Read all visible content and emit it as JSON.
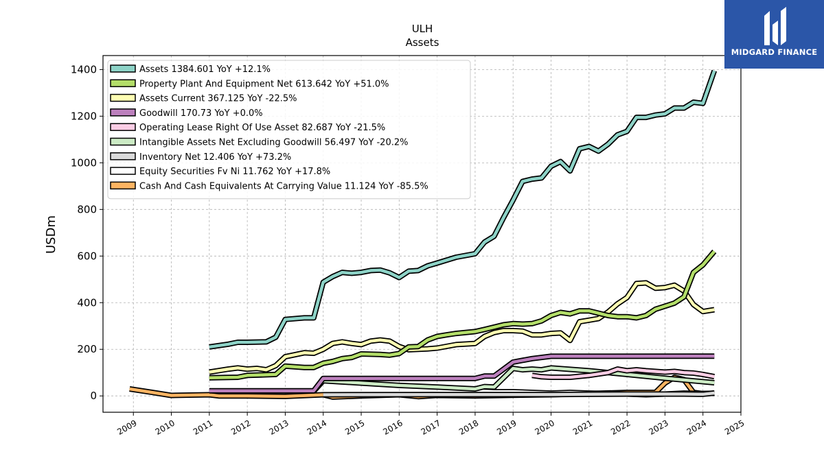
{
  "chart_data": {
    "type": "line",
    "title": "ULH",
    "subtitle": "Assets",
    "ylabel": "USDm",
    "xlabel": "",
    "xlim": [
      2008.2,
      2025.0
    ],
    "ylim": [
      -70,
      1460
    ],
    "x_ticks": [
      "2009",
      "2010",
      "2011",
      "2012",
      "2013",
      "2014",
      "2015",
      "2016",
      "2017",
      "2018",
      "2019",
      "2020",
      "2021",
      "2022",
      "2023",
      "2024",
      "2025"
    ],
    "y_ticks": [
      0,
      200,
      400,
      600,
      800,
      1000,
      1200,
      1400
    ],
    "grid": true,
    "legend_position": "top-left",
    "series": [
      {
        "name": "Assets",
        "label": "Assets  1384.601 YoY +12.1%",
        "color": "#8dd3c7",
        "points": [
          [
            2011.0,
            210
          ],
          [
            2011.5,
            222
          ],
          [
            2011.75,
            230
          ],
          [
            2012.0,
            230
          ],
          [
            2012.5,
            232
          ],
          [
            2012.75,
            252
          ],
          [
            2013.0,
            328
          ],
          [
            2013.5,
            335
          ],
          [
            2013.75,
            335
          ],
          [
            2014.0,
            488
          ],
          [
            2014.25,
            512
          ],
          [
            2014.5,
            530
          ],
          [
            2014.75,
            526
          ],
          [
            2015.0,
            530
          ],
          [
            2015.25,
            538
          ],
          [
            2015.5,
            540
          ],
          [
            2015.75,
            528
          ],
          [
            2016.0,
            508
          ],
          [
            2016.25,
            535
          ],
          [
            2016.5,
            538
          ],
          [
            2016.75,
            558
          ],
          [
            2017.0,
            570
          ],
          [
            2017.5,
            595
          ],
          [
            2018.0,
            610
          ],
          [
            2018.25,
            660
          ],
          [
            2018.5,
            685
          ],
          [
            2018.75,
            765
          ],
          [
            2019.0,
            840
          ],
          [
            2019.25,
            920
          ],
          [
            2019.5,
            930
          ],
          [
            2019.75,
            935
          ],
          [
            2020.0,
            985
          ],
          [
            2020.25,
            1005
          ],
          [
            2020.5,
            965
          ],
          [
            2020.75,
            1060
          ],
          [
            2021.0,
            1070
          ],
          [
            2021.25,
            1050
          ],
          [
            2021.5,
            1080
          ],
          [
            2021.75,
            1120
          ],
          [
            2022.0,
            1135
          ],
          [
            2022.25,
            1195
          ],
          [
            2022.5,
            1195
          ],
          [
            2022.75,
            1205
          ],
          [
            2023.0,
            1210
          ],
          [
            2023.25,
            1235
          ],
          [
            2023.5,
            1235
          ],
          [
            2023.75,
            1260
          ],
          [
            2024.0,
            1255
          ],
          [
            2024.3,
            1395
          ]
        ]
      },
      {
        "name": "Property Plant And Equipment Net",
        "label": "Property Plant And Equipment Net  613.642 YoY +51.0%",
        "color": "#b3de69",
        "points": [
          [
            2011.0,
            78
          ],
          [
            2011.75,
            80
          ],
          [
            2012.0,
            88
          ],
          [
            2012.75,
            92
          ],
          [
            2013.0,
            128
          ],
          [
            2013.5,
            122
          ],
          [
            2013.75,
            122
          ],
          [
            2014.0,
            140
          ],
          [
            2014.25,
            148
          ],
          [
            2014.5,
            160
          ],
          [
            2014.75,
            165
          ],
          [
            2015.0,
            180
          ],
          [
            2015.5,
            178
          ],
          [
            2015.75,
            175
          ],
          [
            2016.0,
            182
          ],
          [
            2016.25,
            210
          ],
          [
            2016.5,
            212
          ],
          [
            2016.75,
            240
          ],
          [
            2017.0,
            255
          ],
          [
            2017.25,
            262
          ],
          [
            2017.5,
            268
          ],
          [
            2018.0,
            276
          ],
          [
            2018.25,
            285
          ],
          [
            2018.5,
            295
          ],
          [
            2018.75,
            305
          ],
          [
            2019.0,
            310
          ],
          [
            2019.25,
            308
          ],
          [
            2019.5,
            310
          ],
          [
            2019.75,
            322
          ],
          [
            2020.0,
            345
          ],
          [
            2020.25,
            358
          ],
          [
            2020.5,
            352
          ],
          [
            2020.75,
            365
          ],
          [
            2021.0,
            365
          ],
          [
            2021.25,
            355
          ],
          [
            2021.5,
            345
          ],
          [
            2021.75,
            340
          ],
          [
            2022.0,
            340
          ],
          [
            2022.25,
            335
          ],
          [
            2022.5,
            345
          ],
          [
            2022.75,
            372
          ],
          [
            2023.0,
            385
          ],
          [
            2023.25,
            398
          ],
          [
            2023.5,
            425
          ],
          [
            2023.75,
            530
          ],
          [
            2024.0,
            562
          ],
          [
            2024.3,
            620
          ]
        ]
      },
      {
        "name": "Assets Current",
        "label": "Assets Current  367.125 YoY -22.5%",
        "color": "#ffffb3",
        "points": [
          [
            2011.0,
            102
          ],
          [
            2011.5,
            115
          ],
          [
            2011.75,
            120
          ],
          [
            2012.0,
            115
          ],
          [
            2012.25,
            118
          ],
          [
            2012.5,
            112
          ],
          [
            2012.75,
            130
          ],
          [
            2013.0,
            168
          ],
          [
            2013.5,
            185
          ],
          [
            2013.75,
            183
          ],
          [
            2014.0,
            200
          ],
          [
            2014.25,
            225
          ],
          [
            2014.5,
            232
          ],
          [
            2014.75,
            225
          ],
          [
            2015.0,
            220
          ],
          [
            2015.25,
            235
          ],
          [
            2015.5,
            240
          ],
          [
            2015.75,
            235
          ],
          [
            2016.0,
            212
          ],
          [
            2016.25,
            198
          ],
          [
            2016.5,
            200
          ],
          [
            2016.75,
            202
          ],
          [
            2017.0,
            205
          ],
          [
            2017.5,
            220
          ],
          [
            2018.0,
            225
          ],
          [
            2018.25,
            255
          ],
          [
            2018.5,
            272
          ],
          [
            2018.75,
            280
          ],
          [
            2019.0,
            280
          ],
          [
            2019.25,
            278
          ],
          [
            2019.5,
            262
          ],
          [
            2019.75,
            262
          ],
          [
            2020.0,
            268
          ],
          [
            2020.25,
            270
          ],
          [
            2020.5,
            238
          ],
          [
            2020.75,
            318
          ],
          [
            2021.0,
            325
          ],
          [
            2021.25,
            332
          ],
          [
            2021.5,
            360
          ],
          [
            2021.75,
            395
          ],
          [
            2022.0,
            422
          ],
          [
            2022.25,
            482
          ],
          [
            2022.5,
            485
          ],
          [
            2022.75,
            462
          ],
          [
            2023.0,
            465
          ],
          [
            2023.25,
            475
          ],
          [
            2023.5,
            450
          ],
          [
            2023.75,
            392
          ],
          [
            2024.0,
            362
          ],
          [
            2024.3,
            370
          ]
        ]
      },
      {
        "name": "Goodwill",
        "label": "Goodwill  170.73 YoY +0.0%",
        "color": "#bc80bd",
        "points": [
          [
            2011.0,
            22
          ],
          [
            2013.75,
            22
          ],
          [
            2014.0,
            75
          ],
          [
            2017.5,
            75
          ],
          [
            2018.0,
            75
          ],
          [
            2018.25,
            85
          ],
          [
            2018.5,
            85
          ],
          [
            2019.0,
            145
          ],
          [
            2019.5,
            160
          ],
          [
            2020.0,
            170
          ],
          [
            2024.3,
            170.73
          ]
        ]
      },
      {
        "name": "Operating Lease Right Of Use Asset",
        "label": "Operating Lease Right Of Use Asset  82.687 YoY -21.5%",
        "color": "#fccde5",
        "points": [
          [
            2019.5,
            88
          ],
          [
            2019.75,
            82
          ],
          [
            2020.0,
            80
          ],
          [
            2020.5,
            80
          ],
          [
            2021.0,
            88
          ],
          [
            2021.5,
            100
          ],
          [
            2021.75,
            115
          ],
          [
            2022.0,
            108
          ],
          [
            2022.25,
            112
          ],
          [
            2022.5,
            108
          ],
          [
            2022.75,
            105
          ],
          [
            2023.0,
            102
          ],
          [
            2023.25,
            105
          ],
          [
            2023.5,
            100
          ],
          [
            2023.75,
            98
          ],
          [
            2024.0,
            92
          ],
          [
            2024.3,
            82.687
          ]
        ]
      },
      {
        "name": "Intangible Assets Net Excluding Goodwill",
        "label": "Intangible Assets Net Excluding Goodwill  56.497 YoY -20.2%",
        "color": "#ccebc5",
        "points": [
          [
            2013.75,
            20
          ],
          [
            2014.0,
            65
          ],
          [
            2015.0,
            55
          ],
          [
            2016.0,
            45
          ],
          [
            2017.0,
            38
          ],
          [
            2018.0,
            30
          ],
          [
            2018.25,
            40
          ],
          [
            2018.5,
            38
          ],
          [
            2019.0,
            118
          ],
          [
            2019.25,
            112
          ],
          [
            2019.5,
            115
          ],
          [
            2019.75,
            112
          ],
          [
            2020.0,
            120
          ],
          [
            2021.0,
            108
          ],
          [
            2022.0,
            92
          ],
          [
            2023.0,
            76
          ],
          [
            2024.3,
            56.497
          ]
        ]
      },
      {
        "name": "Inventory Net",
        "label": "Inventory Net  12.406 YoY +73.2%",
        "color": "#d9d9d9",
        "points": [
          [
            2014.0,
            5
          ],
          [
            2017.0,
            6
          ],
          [
            2020.0,
            6
          ],
          [
            2021.0,
            7
          ],
          [
            2022.0,
            8
          ],
          [
            2023.0,
            8
          ],
          [
            2023.5,
            8
          ],
          [
            2024.0,
            7
          ],
          [
            2024.3,
            12.406
          ]
        ]
      },
      {
        "name": "Equity Securities Fv Ni",
        "label": "Equity Securities Fv Ni  11.762 YoY +17.8%",
        "color": "#ffffff",
        "points": [
          [
            2018.0,
            22
          ],
          [
            2018.5,
            18
          ],
          [
            2019.0,
            18
          ],
          [
            2019.5,
            15
          ],
          [
            2020.0,
            12
          ],
          [
            2020.5,
            15
          ],
          [
            2021.0,
            12
          ],
          [
            2021.5,
            10
          ],
          [
            2022.0,
            8
          ],
          [
            2022.5,
            5
          ],
          [
            2023.0,
            8
          ],
          [
            2023.5,
            12
          ],
          [
            2024.0,
            10
          ],
          [
            2024.3,
            11.762
          ]
        ]
      },
      {
        "name": "Cash And Cash Equivalents At Carrying Value",
        "label": "Cash And Cash Equivalents At Carrying Value  11.124 YoY -85.5%",
        "color": "#fdb462",
        "points": [
          [
            2008.9,
            30
          ],
          [
            2009.5,
            15
          ],
          [
            2010.0,
            2
          ],
          [
            2011.0,
            5
          ],
          [
            2011.25,
            0
          ],
          [
            2012.0,
            0
          ],
          [
            2013.0,
            -2
          ],
          [
            2014.0,
            5
          ],
          [
            2014.25,
            -5
          ],
          [
            2015.0,
            0
          ],
          [
            2016.0,
            5
          ],
          [
            2016.5,
            -3
          ],
          [
            2017.0,
            2
          ],
          [
            2018.0,
            0
          ],
          [
            2019.0,
            3
          ],
          [
            2020.0,
            5
          ],
          [
            2021.0,
            10
          ],
          [
            2022.0,
            15
          ],
          [
            2022.75,
            15
          ],
          [
            2023.0,
            55
          ],
          [
            2023.25,
            80
          ],
          [
            2023.5,
            70
          ],
          [
            2023.75,
            15
          ],
          [
            2024.0,
            10
          ],
          [
            2024.3,
            11.124
          ]
        ]
      }
    ]
  },
  "logo": {
    "text": "MIDGARD FINANCE"
  }
}
